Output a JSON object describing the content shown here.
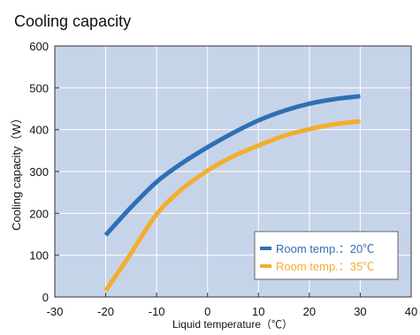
{
  "chart_data": {
    "type": "line",
    "title": "Cooling capacity",
    "xlabel": "Liquid temperature（℃）",
    "ylabel": "Cooling capacity（W）",
    "xlim": [
      -30,
      40
    ],
    "ylim": [
      0,
      600
    ],
    "xticks": [
      -30,
      -20,
      -10,
      0,
      10,
      20,
      30,
      40
    ],
    "yticks": [
      0,
      100,
      200,
      300,
      400,
      500,
      600
    ],
    "xtick_labels": [
      "-30",
      "-20",
      "-10",
      "0",
      "10",
      "20",
      "30",
      "40"
    ],
    "ytick_labels": [
      "0",
      "100",
      "200",
      "300",
      "400",
      "500",
      "600"
    ],
    "grid": true,
    "plot_background": "#c6d4ea",
    "grid_color": "#ffffff",
    "legend_position": "bottom-right",
    "series": [
      {
        "name": "Room temp.：20℃",
        "color": "#2f6fb5",
        "x": [
          -20,
          -15,
          -10,
          -5,
          0,
          5,
          10,
          15,
          20,
          25,
          30
        ],
        "y": [
          148,
          215,
          275,
          320,
          358,
          392,
          422,
          445,
          462,
          473,
          480
        ]
      },
      {
        "name": "Room temp.：35℃",
        "color": "#f3ae2c",
        "x": [
          -20,
          -15,
          -10,
          -5,
          0,
          5,
          10,
          15,
          20,
          25,
          30
        ],
        "y": [
          15,
          105,
          198,
          258,
          302,
          336,
          362,
          385,
          401,
          413,
          420
        ]
      }
    ]
  }
}
